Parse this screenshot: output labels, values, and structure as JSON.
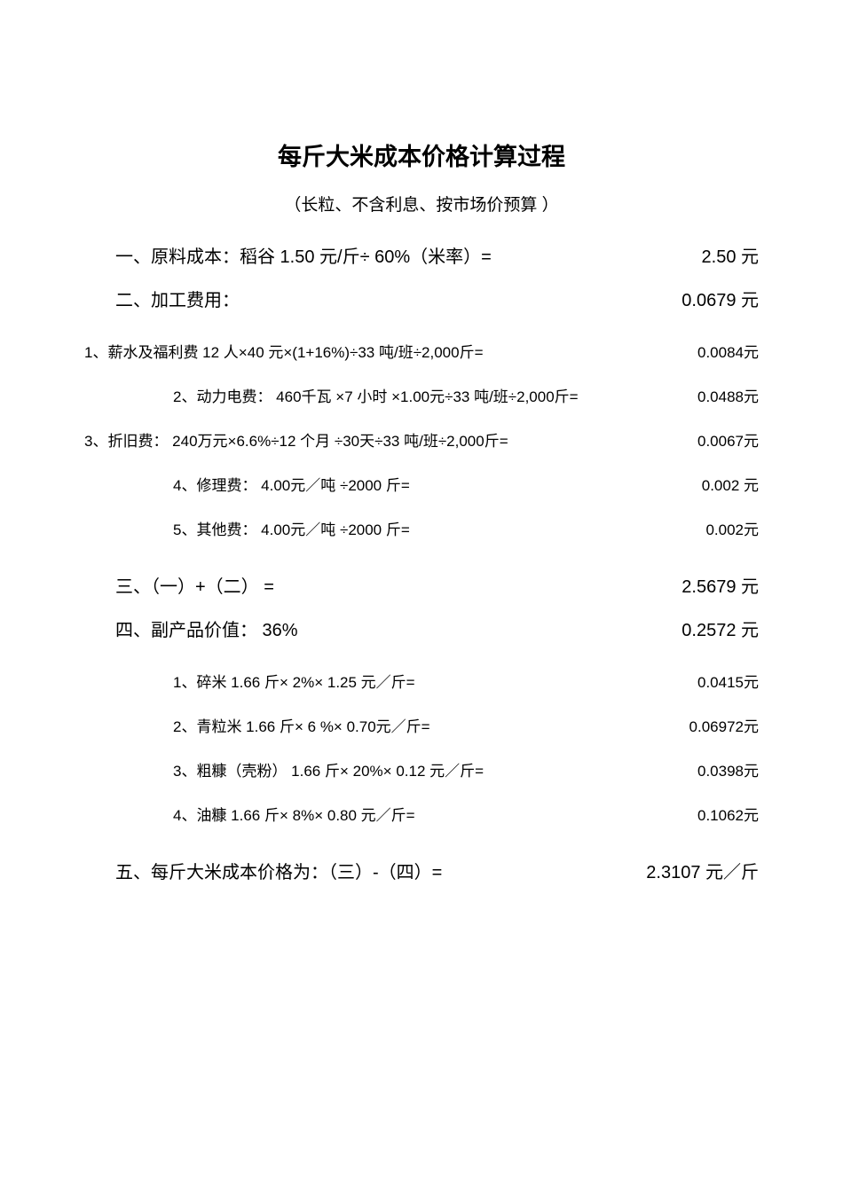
{
  "title": "每斤大米成本价格计算过程",
  "subtitle": "（长粒、不含利息、按市场价预算  ）",
  "section1": {
    "label": "一、原料成本：稻谷   1.50 元/斤÷ 60%（米率）=",
    "value": "2.50 元"
  },
  "section2": {
    "label": "二、加工费用：",
    "value": "0.0679 元",
    "items": [
      {
        "label": "1、薪水及福利费 12 人×40 元×(1+16%)÷33 吨/班÷2,000斤=",
        "value": "0.0084元",
        "indent": false
      },
      {
        "label": "2、动力电费： 460千瓦 ×7 小时 ×1.00元÷33 吨/班÷2,000斤=",
        "value": "0.0488元",
        "indent": true,
        "overlap": true
      },
      {
        "label": "3、折旧费： 240万元×6.6%÷12 个月 ÷30天÷33 吨/班÷2,000斤=",
        "value": "0.0067元",
        "indent": false
      },
      {
        "label": "4、修理费： 4.00元／吨 ÷2000 斤=",
        "value": "0.002 元",
        "indent": true
      },
      {
        "label": "5、其他费： 4.00元／吨 ÷2000 斤=",
        "value": "0.002元",
        "indent": true
      }
    ]
  },
  "section3": {
    "label": "三、（一）+（二） =",
    "value": "2.5679 元"
  },
  "section4": {
    "label": "四、副产品价值： 36%",
    "value": "0.2572 元",
    "items": [
      {
        "label": "1、碎米 1.66 斤× 2%× 1.25 元／斤=",
        "value": "0.0415元"
      },
      {
        "label": "2、青粒米 1.66 斤× 6 %× 0.70元／斤=",
        "value": "0.06972元"
      },
      {
        "label": "3、粗糠（壳粉） 1.66 斤× 20%× 0.12 元／斤=",
        "value": "0.0398元"
      },
      {
        "label": "4、油糠 1.66 斤× 8%× 0.80 元／斤=",
        "value": "0.1062元"
      }
    ]
  },
  "section5": {
    "label": "五、每斤大米成本价格为：（三）-（四）=",
    "value": "2.3107 元／斤"
  }
}
